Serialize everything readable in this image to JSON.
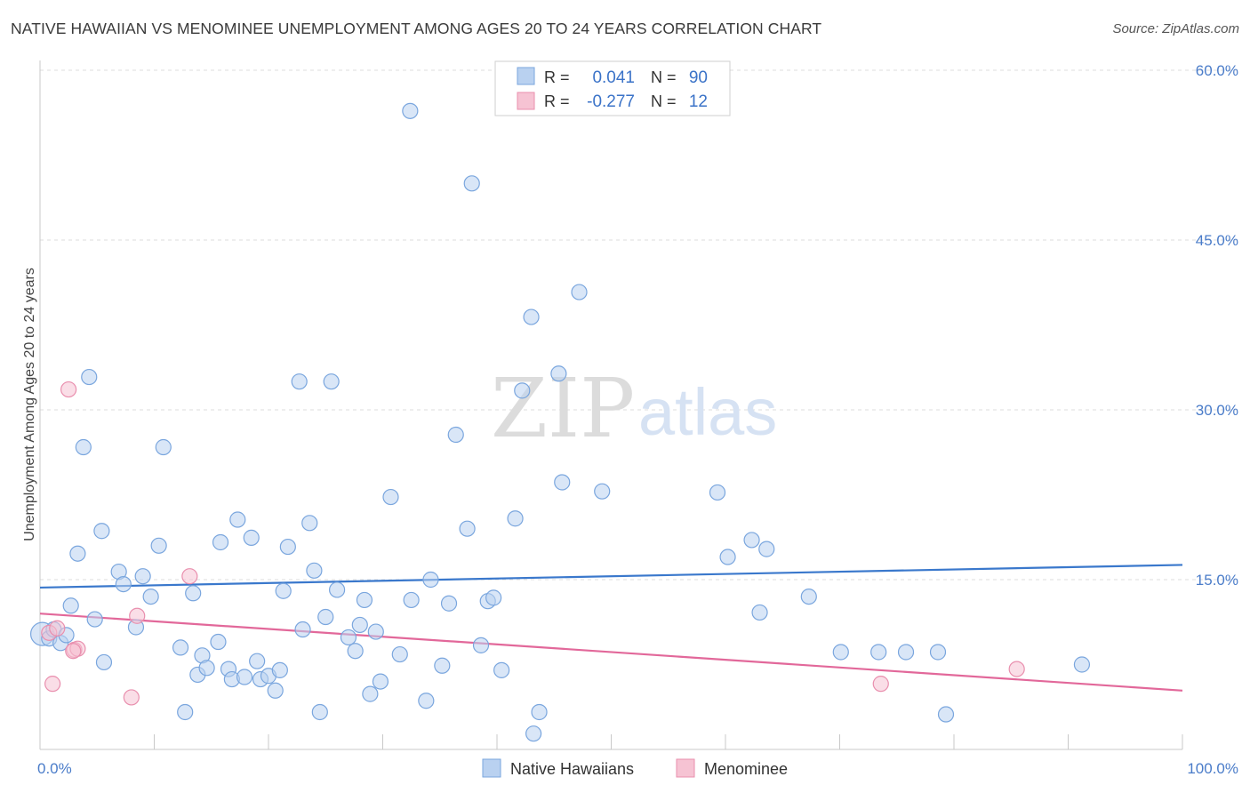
{
  "title": "NATIVE HAWAIIAN VS MENOMINEE UNEMPLOYMENT AMONG AGES 20 TO 24 YEARS CORRELATION CHART",
  "source": "Source: ZipAtlas.com",
  "watermark": {
    "zip": "ZIP",
    "atlas": "atlas"
  },
  "colors": {
    "blue_fill": "#b9d1f0",
    "blue_stroke": "#7aa6de",
    "blue_line": "#3a78cc",
    "pink_fill": "#f6c3d3",
    "pink_stroke": "#e98fae",
    "pink_line": "#e2689a",
    "axis_label": "#4a7cc9",
    "grid": "#dddddd"
  },
  "legend": {
    "r_label": "R =",
    "n_label": "N =",
    "rows": [
      {
        "r": "0.041",
        "n": "90"
      },
      {
        "r": "-0.277",
        "n": "12"
      }
    ]
  },
  "chart_data": {
    "type": "scatter",
    "xlabel": "",
    "ylabel": "Unemployment Among Ages 20 to 24 years",
    "xlim": [
      0,
      100
    ],
    "ylim": [
      0,
      60
    ],
    "x_tick_labels": [
      "0.0%",
      "100.0%"
    ],
    "y_tick_labels": [
      "15.0%",
      "30.0%",
      "45.0%",
      "60.0%"
    ],
    "y_ticks": [
      15,
      30,
      45,
      60
    ],
    "grid": true,
    "legend_position": "top-center",
    "series": [
      {
        "name": "Native Hawaiians",
        "color": "#7aa6de",
        "trend": {
          "x": [
            0,
            100
          ],
          "y": [
            14.3,
            16.3
          ]
        },
        "points": [
          {
            "x": 0.2,
            "y": 10.2,
            "big": true
          },
          {
            "x": 0.8,
            "y": 9.8
          },
          {
            "x": 1.2,
            "y": 10.6
          },
          {
            "x": 1.8,
            "y": 9.4
          },
          {
            "x": 2.3,
            "y": 10.1
          },
          {
            "x": 2.7,
            "y": 12.7
          },
          {
            "x": 3.3,
            "y": 17.3
          },
          {
            "x": 3.8,
            "y": 26.7
          },
          {
            "x": 4.3,
            "y": 32.9
          },
          {
            "x": 4.8,
            "y": 11.5
          },
          {
            "x": 5.4,
            "y": 19.3
          },
          {
            "x": 5.6,
            "y": 7.7
          },
          {
            "x": 6.9,
            "y": 15.7
          },
          {
            "x": 7.3,
            "y": 14.6
          },
          {
            "x": 8.4,
            "y": 10.8
          },
          {
            "x": 9.0,
            "y": 15.3
          },
          {
            "x": 9.7,
            "y": 13.5
          },
          {
            "x": 10.4,
            "y": 18.0
          },
          {
            "x": 10.8,
            "y": 26.7
          },
          {
            "x": 12.3,
            "y": 9.0
          },
          {
            "x": 12.7,
            "y": 3.3
          },
          {
            "x": 13.4,
            "y": 13.8
          },
          {
            "x": 13.8,
            "y": 6.6
          },
          {
            "x": 14.2,
            "y": 8.3
          },
          {
            "x": 14.6,
            "y": 7.2
          },
          {
            "x": 15.6,
            "y": 9.5
          },
          {
            "x": 15.8,
            "y": 18.3
          },
          {
            "x": 16.5,
            "y": 7.1
          },
          {
            "x": 16.8,
            "y": 6.2
          },
          {
            "x": 17.3,
            "y": 20.3
          },
          {
            "x": 17.9,
            "y": 6.4
          },
          {
            "x": 18.5,
            "y": 18.7
          },
          {
            "x": 19.0,
            "y": 7.8
          },
          {
            "x": 19.3,
            "y": 6.2
          },
          {
            "x": 20.0,
            "y": 6.5
          },
          {
            "x": 20.6,
            "y": 5.2
          },
          {
            "x": 21.0,
            "y": 7.0
          },
          {
            "x": 21.3,
            "y": 14.0
          },
          {
            "x": 21.7,
            "y": 17.9
          },
          {
            "x": 22.7,
            "y": 32.5
          },
          {
            "x": 23.0,
            "y": 10.6
          },
          {
            "x": 23.6,
            "y": 20.0
          },
          {
            "x": 24.0,
            "y": 15.8
          },
          {
            "x": 24.5,
            "y": 3.3
          },
          {
            "x": 25.0,
            "y": 11.7
          },
          {
            "x": 25.5,
            "y": 32.5
          },
          {
            "x": 26.0,
            "y": 14.1
          },
          {
            "x": 27.0,
            "y": 9.9
          },
          {
            "x": 27.6,
            "y": 8.7
          },
          {
            "x": 28.0,
            "y": 11.0
          },
          {
            "x": 28.4,
            "y": 13.2
          },
          {
            "x": 28.9,
            "y": 4.9
          },
          {
            "x": 29.4,
            "y": 10.4
          },
          {
            "x": 29.8,
            "y": 6.0
          },
          {
            "x": 30.7,
            "y": 22.3
          },
          {
            "x": 31.5,
            "y": 8.4
          },
          {
            "x": 32.4,
            "y": 56.4
          },
          {
            "x": 32.5,
            "y": 13.2
          },
          {
            "x": 33.8,
            "y": 4.3
          },
          {
            "x": 34.2,
            "y": 15.0
          },
          {
            "x": 35.2,
            "y": 7.4
          },
          {
            "x": 35.8,
            "y": 12.9
          },
          {
            "x": 36.4,
            "y": 27.8
          },
          {
            "x": 37.4,
            "y": 19.5
          },
          {
            "x": 37.8,
            "y": 50.0
          },
          {
            "x": 38.6,
            "y": 9.2
          },
          {
            "x": 39.2,
            "y": 13.1
          },
          {
            "x": 39.7,
            "y": 13.4
          },
          {
            "x": 40.4,
            "y": 7.0
          },
          {
            "x": 41.6,
            "y": 20.4
          },
          {
            "x": 42.2,
            "y": 31.7
          },
          {
            "x": 43.0,
            "y": 38.2
          },
          {
            "x": 43.2,
            "y": 1.4
          },
          {
            "x": 43.7,
            "y": 3.3
          },
          {
            "x": 45.4,
            "y": 33.2
          },
          {
            "x": 45.7,
            "y": 23.6
          },
          {
            "x": 47.2,
            "y": 40.4
          },
          {
            "x": 49.2,
            "y": 22.8
          },
          {
            "x": 59.3,
            "y": 22.7
          },
          {
            "x": 60.2,
            "y": 17.0
          },
          {
            "x": 62.3,
            "y": 18.5
          },
          {
            "x": 63.0,
            "y": 12.1
          },
          {
            "x": 63.6,
            "y": 17.7
          },
          {
            "x": 67.3,
            "y": 13.5
          },
          {
            "x": 70.1,
            "y": 8.6
          },
          {
            "x": 73.4,
            "y": 8.6
          },
          {
            "x": 75.8,
            "y": 8.6
          },
          {
            "x": 78.6,
            "y": 8.6
          },
          {
            "x": 79.3,
            "y": 3.1
          },
          {
            "x": 91.2,
            "y": 7.5
          }
        ]
      },
      {
        "name": "Menominee",
        "color": "#e98fae",
        "trend": {
          "x": [
            0,
            100
          ],
          "y": [
            12.0,
            5.2
          ]
        },
        "points": [
          {
            "x": 0.8,
            "y": 10.3
          },
          {
            "x": 1.1,
            "y": 5.8
          },
          {
            "x": 2.5,
            "y": 31.8
          },
          {
            "x": 3.0,
            "y": 8.8
          },
          {
            "x": 3.3,
            "y": 8.9
          },
          {
            "x": 8.0,
            "y": 4.6
          },
          {
            "x": 8.5,
            "y": 11.8
          },
          {
            "x": 13.1,
            "y": 15.3
          },
          {
            "x": 73.6,
            "y": 5.8
          },
          {
            "x": 85.5,
            "y": 7.1
          },
          {
            "x": 1.5,
            "y": 10.7
          },
          {
            "x": 2.9,
            "y": 8.7
          }
        ]
      }
    ]
  }
}
